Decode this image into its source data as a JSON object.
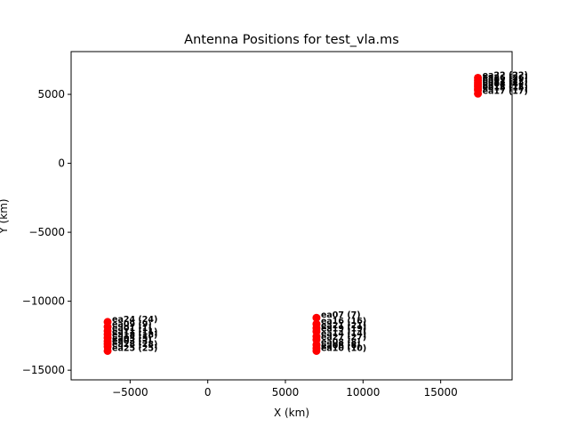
{
  "chart_data": {
    "type": "scatter",
    "title": "Antenna Positions for test_vla.ms",
    "xlabel": "X (km)",
    "ylabel": "Y (km)",
    "xlim": [
      -8800,
      19600
    ],
    "ylim": [
      -15700,
      8100
    ],
    "xticks": [
      -5000,
      0,
      5000,
      10000,
      15000
    ],
    "yticks": [
      -15000,
      -10000,
      -5000,
      0,
      5000
    ],
    "xtick_labels": [
      "−5000",
      "0",
      "5000",
      "10000",
      "15000"
    ],
    "ytick_labels": [
      "−15000",
      "−10000",
      "−5000",
      "0",
      "5000"
    ],
    "grid": false,
    "marker_color": "#ff0000",
    "points": [
      {
        "label": "ea24 (24)",
        "x": -6450,
        "y": -11500
      },
      {
        "label": "ea09 (9)",
        "x": -6450,
        "y": -11850
      },
      {
        "label": "ea01 (1)",
        "x": -6450,
        "y": -12150
      },
      {
        "label": "ea11 (11)",
        "x": -6450,
        "y": -12400
      },
      {
        "label": "ea18 (18)",
        "x": -6450,
        "y": -12650
      },
      {
        "label": "ea05 (5)",
        "x": -6450,
        "y": -12900
      },
      {
        "label": "ea03 (3)",
        "x": -6450,
        "y": -13100
      },
      {
        "label": "ea28 (28)",
        "x": -6450,
        "y": -13300
      },
      {
        "label": "ea25 (25)",
        "x": -6450,
        "y": -13600
      },
      {
        "label": "ea07 (7)",
        "x": 7000,
        "y": -11200
      },
      {
        "label": "ea16 (16)",
        "x": 7000,
        "y": -11650
      },
      {
        "label": "ea21 (21)",
        "x": 7000,
        "y": -11950
      },
      {
        "label": "ea19 (19)",
        "x": 7000,
        "y": -12200
      },
      {
        "label": "ea14 (14)",
        "x": 7000,
        "y": -12550
      },
      {
        "label": "ea27 (27)",
        "x": 7000,
        "y": -12800
      },
      {
        "label": "ea08 (8)",
        "x": 7000,
        "y": -13150
      },
      {
        "label": "ea06 (6)",
        "x": 7000,
        "y": -13400
      },
      {
        "label": "ea10 (10)",
        "x": 7000,
        "y": -13600
      },
      {
        "label": "ea22 (22)",
        "x": 17400,
        "y": 6200
      },
      {
        "label": "ea26 (26)",
        "x": 17400,
        "y": 6000
      },
      {
        "label": "ea02 (2)",
        "x": 17400,
        "y": 5850
      },
      {
        "label": "ea13 (13)",
        "x": 17400,
        "y": 5700
      },
      {
        "label": "ea04 (4)",
        "x": 17400,
        "y": 5550
      },
      {
        "label": "ea12 (12)",
        "x": 17400,
        "y": 5400
      },
      {
        "label": "ea15 (15)",
        "x": 17400,
        "y": 5300
      },
      {
        "label": "ea17 (17)",
        "x": 17400,
        "y": 5050
      }
    ]
  }
}
